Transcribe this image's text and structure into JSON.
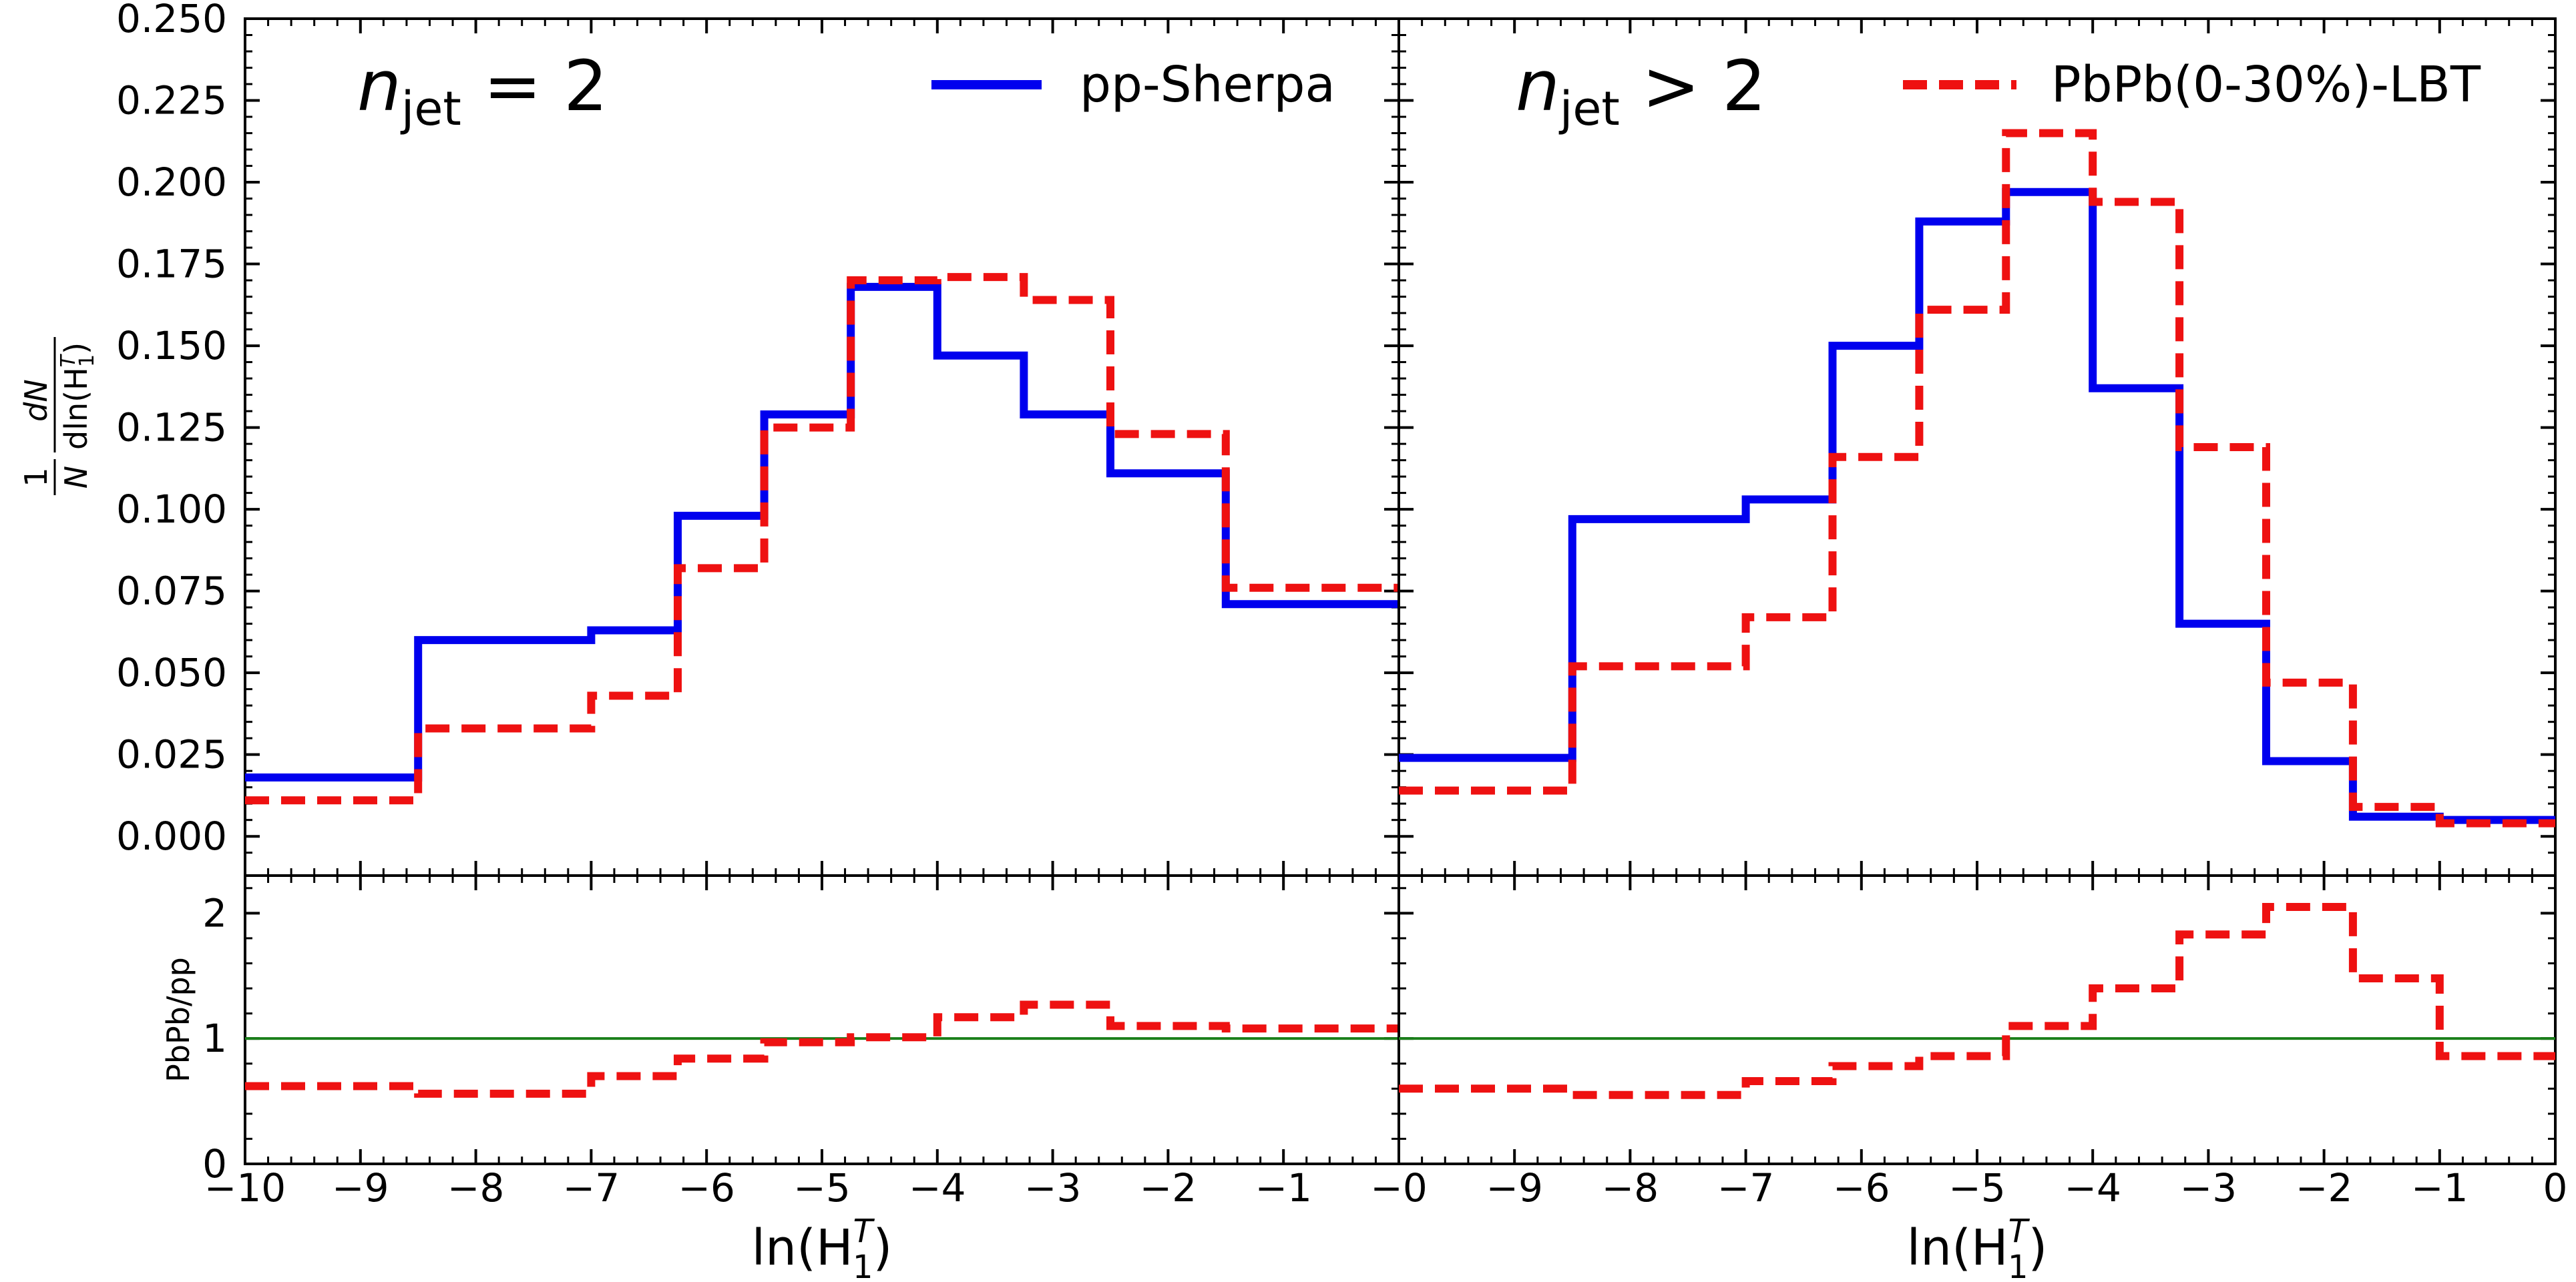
{
  "chart_data": {
    "type": "line",
    "x_axis": {
      "label_main": "ln(H",
      "label_sub": "1",
      "label_sup": "T",
      "label_close": ")",
      "range": [
        -10,
        0
      ],
      "ticks": [
        -10,
        -9,
        -8,
        -7,
        -6,
        -5,
        -4,
        -3,
        -2,
        -1,
        0
      ],
      "tick_labels": [
        "−10",
        "−9",
        "−8",
        "−7",
        "−6",
        "−5",
        "−4",
        "−3",
        "−2",
        "−1",
        "−0"
      ],
      "right_panel_tick_labels": [
        "0",
        "−9",
        "−8",
        "−7",
        "−6",
        "−5",
        "−4",
        "−3",
        "−2",
        "−1",
        "0"
      ]
    },
    "y_axis_top": {
      "label": "1/N dN/dln(H1T)",
      "label_frac1_num": "1",
      "label_frac1_den": "N",
      "label_frac2_num": "dN",
      "label_frac2_den": "dln(H",
      "label_frac2_sub": "1",
      "label_frac2_sup": "T",
      "label_frac2_close": ")",
      "range": [
        -0.012,
        0.25
      ],
      "ticks": [
        0.0,
        0.025,
        0.05,
        0.075,
        0.1,
        0.125,
        0.15,
        0.175,
        0.2,
        0.225,
        0.25
      ],
      "tick_labels": [
        "0.000",
        "0.025",
        "0.050",
        "0.075",
        "0.100",
        "0.125",
        "0.150",
        "0.175",
        "0.200",
        "0.225",
        "0.250"
      ]
    },
    "y_axis_ratio": {
      "label": "PbPb/pp",
      "range": [
        0,
        2.3
      ],
      "ticks": [
        0,
        1,
        2
      ],
      "tick_labels": [
        "0",
        "1",
        "2"
      ],
      "reference_line": 1.0
    },
    "legend": [
      {
        "name": "pp-Sherpa",
        "color": "#0000ee",
        "style": "solid",
        "location": "left-panel top-right"
      },
      {
        "name": "PbPb(0-30%)-LBT",
        "color": "#ee1111",
        "style": "dashed",
        "location": "right-panel top-right"
      }
    ],
    "panels": [
      {
        "title_var": "n",
        "title_sub": "jet",
        "title_rel": " = 2",
        "bin_edges": [
          -10,
          -8.5,
          -7,
          -6.25,
          -5.5,
          -4.75,
          -4,
          -3.25,
          -2.5,
          -1.5,
          0
        ],
        "series": [
          {
            "name": "pp-Sherpa",
            "values": [
              0.018,
              0.06,
              0.063,
              0.098,
              0.129,
              0.168,
              0.147,
              0.129,
              0.111,
              0.071
            ]
          },
          {
            "name": "PbPb(0-30%)-LBT",
            "values": [
              0.011,
              0.033,
              0.043,
              0.082,
              0.125,
              0.17,
              0.171,
              0.164,
              0.123,
              0.076
            ]
          }
        ],
        "ratio": [
          0.62,
          0.56,
          0.7,
          0.84,
          0.97,
          1.01,
          1.17,
          1.27,
          1.1,
          1.08
        ]
      },
      {
        "title_var": "n",
        "title_sub": "jet",
        "title_rel": " > 2",
        "bin_edges": [
          -10,
          -8.5,
          -7,
          -6.25,
          -5.5,
          -4.75,
          -4,
          -3.25,
          -2.5,
          -1.75,
          -1,
          0
        ],
        "series": [
          {
            "name": "pp-Sherpa",
            "values": [
              0.024,
              0.097,
              0.103,
              0.15,
              0.188,
              0.197,
              0.137,
              0.065,
              0.023,
              0.006,
              0.005
            ]
          },
          {
            "name": "PbPb(0-30%)-LBT",
            "values": [
              0.014,
              0.052,
              0.067,
              0.116,
              0.161,
              0.215,
              0.194,
              0.119,
              0.047,
              0.009,
              0.004
            ]
          }
        ],
        "ratio": [
          0.6,
          0.55,
          0.66,
          0.78,
          0.86,
          1.1,
          1.4,
          1.83,
          2.05,
          1.48,
          0.86
        ]
      }
    ],
    "colors": {
      "sherpa": "#0000ee",
      "lbt": "#ee1111",
      "ratio_line": "#1a7f1a"
    }
  }
}
